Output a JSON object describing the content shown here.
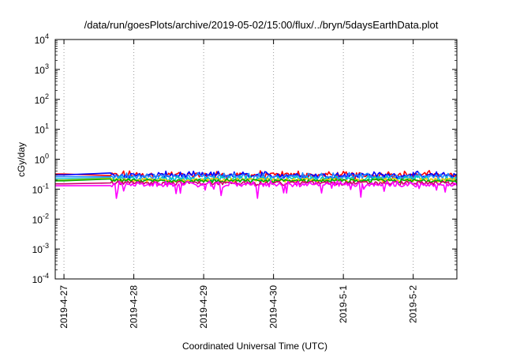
{
  "chart_data": {
    "type": "line",
    "title": "/data/run/goesPlots/archive/2019-05-02/15:00/flux/../bryn/5daysEarthData.plot",
    "xlabel": "Coordinated Universal Time (UTC)",
    "ylabel": "cGy/day",
    "y_scale": "log",
    "ylim": [
      0.0001,
      10000
    ],
    "y_ticks": [
      {
        "value": 0.0001,
        "base": "10",
        "exp": "-4"
      },
      {
        "value": 0.001,
        "base": "10",
        "exp": "-3"
      },
      {
        "value": 0.01,
        "base": "10",
        "exp": "-2"
      },
      {
        "value": 0.1,
        "base": "10",
        "exp": "-1"
      },
      {
        "value": 1,
        "base": "10",
        "exp": "0"
      },
      {
        "value": 10,
        "base": "10",
        "exp": "1"
      },
      {
        "value": 100,
        "base": "10",
        "exp": "2"
      },
      {
        "value": 1000,
        "base": "10",
        "exp": "3"
      },
      {
        "value": 10000,
        "base": "10",
        "exp": "4"
      }
    ],
    "xlim": [
      "2019-04-26 21:00",
      "2019-05-02 15:00"
    ],
    "x_ticks": [
      "2019-4-27",
      "2019-4-28",
      "2019-4-29",
      "2019-4-30",
      "2019-5-1",
      "2019-5-2"
    ],
    "grid": true,
    "data_gap": [
      "2019-04-27 00:00",
      "2019-04-27 16:00"
    ],
    "series": [
      {
        "color": "#ff0000",
        "values": {
          "start": 0.32,
          "mid": 0.3,
          "high": 0.42,
          "low": 0.2
        }
      },
      {
        "color": "#0000ff",
        "values": {
          "start": 0.3,
          "mid": 0.29,
          "high": 0.4,
          "low": 0.22
        }
      },
      {
        "color": "#2288ff",
        "values": {
          "start": 0.26,
          "mid": 0.26,
          "high": 0.36,
          "low": 0.2
        }
      },
      {
        "color": "#00c8c8",
        "values": {
          "start": 0.22,
          "mid": 0.22,
          "high": 0.28,
          "low": 0.18
        }
      },
      {
        "color": "#ffcc00",
        "values": {
          "start": 0.2,
          "mid": 0.2,
          "high": 0.23,
          "low": 0.17
        }
      },
      {
        "color": "#00aa00",
        "values": {
          "start": 0.19,
          "mid": 0.19,
          "high": 0.21,
          "low": 0.17
        }
      },
      {
        "color": "#cc0066",
        "values": {
          "start": 0.15,
          "mid": 0.16,
          "high": 0.18,
          "low": 0.13
        }
      },
      {
        "color": "#ff00ff",
        "values": {
          "start": 0.13,
          "mid": 0.14,
          "high": 0.19,
          "low": 0.045
        }
      }
    ]
  }
}
